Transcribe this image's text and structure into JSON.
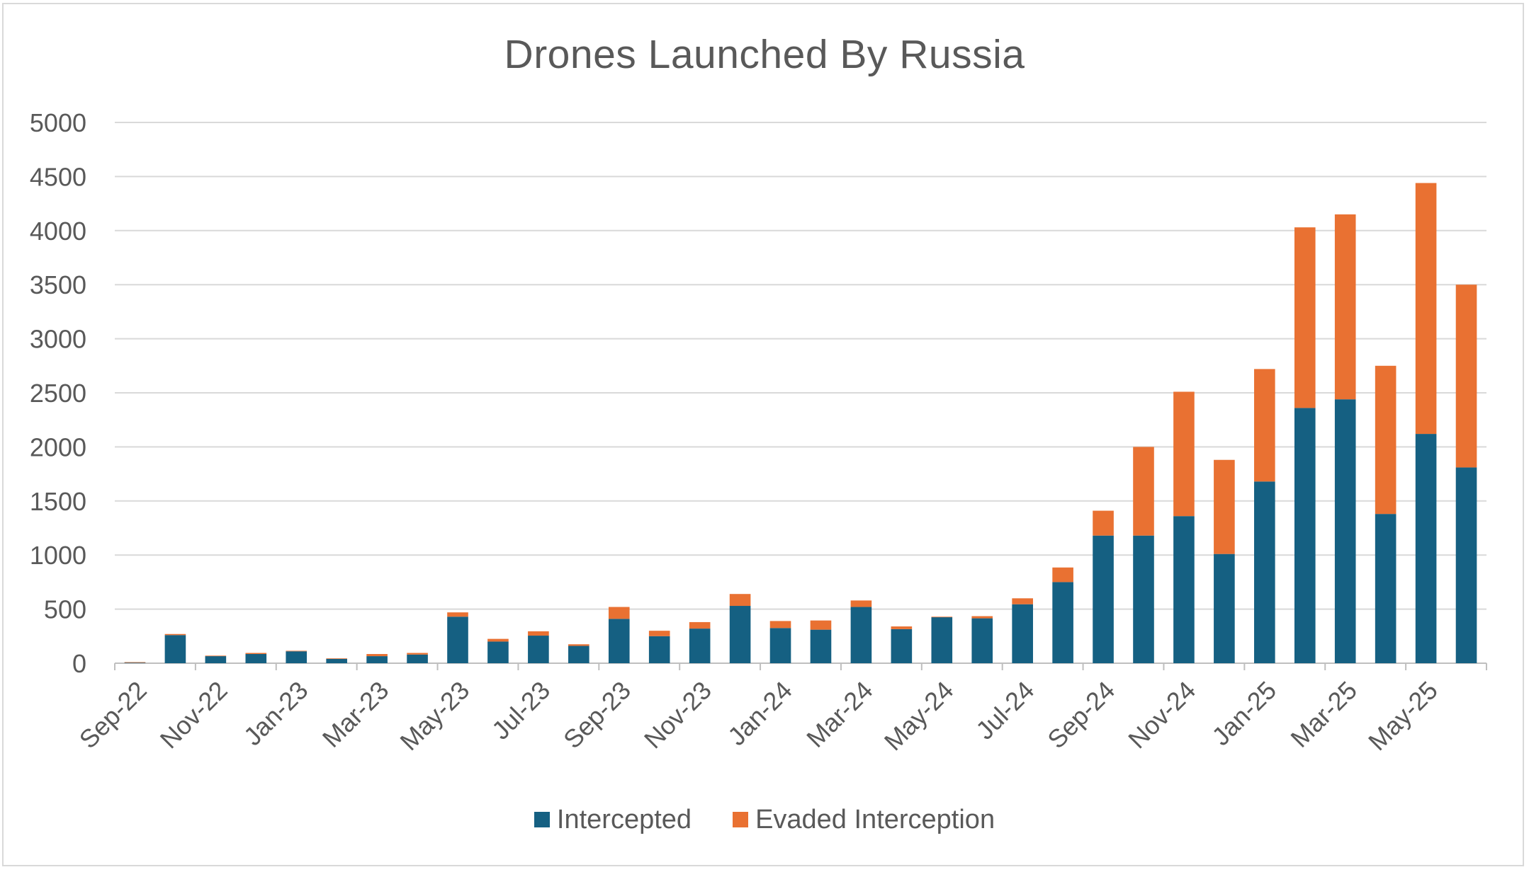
{
  "chart_data": {
    "type": "bar",
    "stacked": true,
    "title": "Drones Launched By Russia",
    "xlabel": "",
    "ylabel": "",
    "ylim": [
      0,
      5000
    ],
    "yticks": [
      0,
      500,
      1000,
      1500,
      2000,
      2500,
      3000,
      3500,
      4000,
      4500,
      5000
    ],
    "grid": true,
    "legend_position": "bottom",
    "categories": [
      "Sep-22",
      "Oct-22",
      "Nov-22",
      "Dec-22",
      "Jan-23",
      "Feb-23",
      "Mar-23",
      "Apr-23",
      "May-23",
      "Jun-23",
      "Jul-23",
      "Aug-23",
      "Sep-23",
      "Oct-23",
      "Nov-23",
      "Dec-23",
      "Jan-24",
      "Feb-24",
      "Mar-24",
      "Apr-24",
      "May-24",
      "Jun-24",
      "Jul-24",
      "Aug-24",
      "Sep-24",
      "Oct-24",
      "Nov-24",
      "Dec-24",
      "Jan-25",
      "Feb-25",
      "Mar-25",
      "Apr-25",
      "May-25",
      "Jun-25"
    ],
    "x_tick_labels": [
      "Sep-22",
      "Nov-22",
      "Jan-23",
      "Mar-23",
      "May-23",
      "Jul-23",
      "Sep-23",
      "Nov-23",
      "Jan-24",
      "Mar-24",
      "May-24",
      "Jul-24",
      "Sep-24",
      "Nov-24",
      "Jan-25",
      "Mar-25",
      "May-25"
    ],
    "series": [
      {
        "name": "Intercepted",
        "color": "#156082",
        "values": [
          5,
          260,
          65,
          85,
          110,
          40,
          65,
          80,
          430,
          200,
          255,
          160,
          410,
          250,
          320,
          530,
          325,
          310,
          520,
          315,
          425,
          415,
          545,
          750,
          1180,
          1180,
          1360,
          1010,
          1680,
          2360,
          2440,
          1380,
          2120,
          1810
        ]
      },
      {
        "name": "Evaded Interception",
        "color": "#E97132",
        "values": [
          5,
          10,
          5,
          10,
          5,
          5,
          20,
          15,
          40,
          25,
          40,
          15,
          110,
          50,
          60,
          110,
          65,
          85,
          60,
          25,
          5,
          20,
          55,
          135,
          230,
          820,
          1150,
          870,
          1040,
          1670,
          1710,
          1370,
          2320,
          1690
        ]
      }
    ]
  }
}
